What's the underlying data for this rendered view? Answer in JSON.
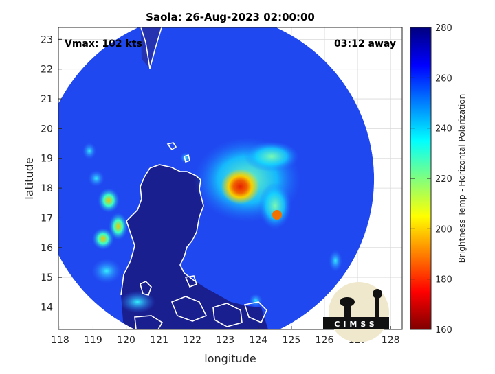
{
  "chart_data": {
    "type": "heatmap",
    "title": "Saola: 26-Aug-2023 02:00:00",
    "xlabel": "longitude",
    "ylabel": "latitude",
    "xlim": [
      117.95,
      128.35
    ],
    "ylim": [
      13.25,
      23.4
    ],
    "xticks": [
      118,
      119,
      120,
      121,
      122,
      123,
      124,
      125,
      126,
      127,
      128
    ],
    "yticks": [
      14,
      15,
      16,
      17,
      18,
      19,
      20,
      21,
      22,
      23
    ],
    "grid": true,
    "annotations": {
      "vmax": "Vmax: 102 kts",
      "time_offset": "03:12 away"
    },
    "colorbar": {
      "label": "Brightness Temp - Horizontal Polarization",
      "min": 160,
      "max": 280,
      "ticks": [
        160,
        180,
        200,
        220,
        240,
        260,
        280
      ],
      "colormap": "jet"
    },
    "swath": {
      "center_lon": 122.45,
      "center_lat": 18.3,
      "radius_deg": 5.05,
      "background_temp": 262
    },
    "storm": {
      "center_lon": 123.45,
      "center_lat": 18.05,
      "eye_min_temp": 182,
      "rainband_temp": 222
    },
    "logo": "CIMSS"
  },
  "colors": {
    "land": "#1a1f8f",
    "coastline": "#ffffff",
    "grid": "#d8d8d8"
  }
}
